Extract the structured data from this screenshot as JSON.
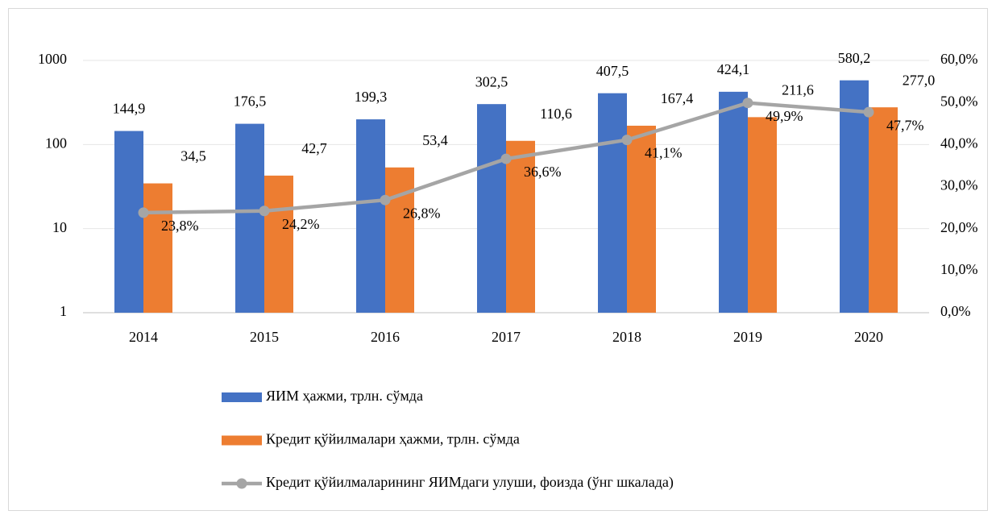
{
  "chart_data": {
    "type": "bar",
    "categories": [
      "2014",
      "2015",
      "2016",
      "2017",
      "2018",
      "2019",
      "2020"
    ],
    "series": [
      {
        "name": "ЯИМ ҳажми, трлн. сўмда",
        "color": "#4472c4",
        "values": [
          144.9,
          176.5,
          199.3,
          302.5,
          407.5,
          424.1,
          580.2
        ],
        "value_labels": [
          "144,9",
          "176,5",
          "199,3",
          "302,5",
          "407,5",
          "424,1",
          "580,2"
        ]
      },
      {
        "name": "Кредит қўйилмалари ҳажми, трлн. сўмда",
        "color": "#ed7d31",
        "values": [
          34.5,
          42.7,
          53.4,
          110.6,
          167.4,
          211.6,
          277.0
        ],
        "value_labels": [
          "34,5",
          "42,7",
          "53,4",
          "110,6",
          "167,4",
          "211,6",
          "277,0"
        ]
      },
      {
        "name": "Кредит қўйилмаларининг ЯИМдаги улуши, фоизда (ўнг шкалада)",
        "color": "#a5a5a5",
        "type": "line",
        "axis": "y2",
        "values": [
          23.8,
          24.2,
          26.8,
          36.6,
          41.1,
          49.9,
          47.7
        ],
        "value_labels": [
          "23,8%",
          "24,2%",
          "26,8%",
          "36,6%",
          "41,1%",
          "49,9%",
          "47,7%"
        ]
      }
    ],
    "ylim": [
      1,
      1000
    ],
    "yticks": [
      1,
      10,
      100,
      1000
    ],
    "log_scale": true,
    "y2lim": [
      0,
      60
    ],
    "y2ticks": [
      {
        "value": 0,
        "label": "0,0%"
      },
      {
        "value": 10,
        "label": "10,0%"
      },
      {
        "value": 20,
        "label": "20,0%"
      },
      {
        "value": 30,
        "label": "30,0%"
      },
      {
        "value": 40,
        "label": "40,0%"
      },
      {
        "value": 50,
        "label": "50,0%"
      },
      {
        "value": 60,
        "label": "60,0%"
      }
    ],
    "grid": true,
    "legend": "bottom"
  }
}
